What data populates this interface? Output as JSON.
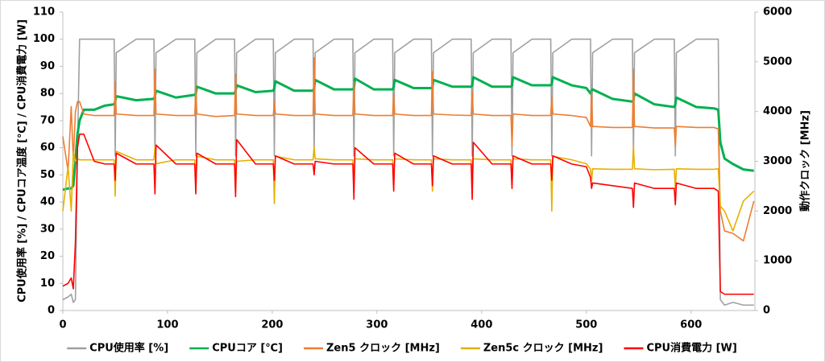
{
  "chart_data": {
    "type": "line",
    "y_label": "CPU使用率 [%] / CPUコア温度 [℃] / CPU消費電力 [W]",
    "y2_label": "動作クロック [MHz]",
    "x": [
      0,
      5,
      8,
      10,
      12,
      14,
      16,
      20,
      30,
      40,
      49,
      50,
      51,
      70,
      87,
      88,
      89,
      108,
      126,
      127,
      128,
      146,
      164,
      165,
      166,
      184,
      201,
      202,
      203,
      221,
      239,
      240,
      241,
      259,
      277,
      278,
      279,
      297,
      315,
      316,
      317,
      335,
      352,
      353,
      354,
      372,
      390,
      391,
      392,
      410,
      428,
      429,
      430,
      448,
      466,
      467,
      468,
      486,
      500,
      504,
      505,
      506,
      525,
      544,
      545,
      546,
      565,
      584,
      585,
      586,
      605,
      622,
      626,
      628,
      632,
      640,
      650,
      660
    ],
    "xlim": [
      0,
      661
    ],
    "xticks": [
      0,
      100,
      200,
      300,
      400,
      500,
      600
    ],
    "ylim": [
      0,
      110
    ],
    "yticks": [
      0,
      10,
      20,
      30,
      40,
      50,
      60,
      70,
      80,
      90,
      100,
      110
    ],
    "y2lim": [
      0,
      6000
    ],
    "y2ticks": [
      0,
      1000,
      2000,
      3000,
      4000,
      5000,
      6000
    ],
    "legend": "bottom",
    "series": [
      {
        "name": "CPU使用率 [%]",
        "color": "#a0a0a0",
        "values": [
          4,
          5,
          6,
          3,
          4,
          60,
          100,
          100,
          100,
          100,
          100,
          57,
          95,
          100,
          100,
          57,
          95,
          100,
          100,
          57,
          95,
          100,
          100,
          57,
          95,
          100,
          100,
          57,
          95,
          100,
          100,
          57,
          95,
          100,
          100,
          57,
          95,
          100,
          100,
          57,
          95,
          100,
          100,
          57,
          95,
          100,
          100,
          57,
          95,
          100,
          100,
          57,
          95,
          100,
          100,
          57,
          95,
          100,
          100,
          100,
          57,
          95,
          100,
          100,
          57,
          95,
          100,
          100,
          57,
          95,
          100,
          100,
          100,
          4,
          2,
          3,
          2,
          2
        ]
      },
      {
        "name": "CPUコア [℃]",
        "color": "#00b050",
        "values": [
          44.5,
          45,
          45,
          46,
          55,
          65,
          70,
          74,
          74,
          75.5,
          76,
          77,
          79,
          77.5,
          78,
          79,
          81,
          78.5,
          79.5,
          80,
          82.5,
          80,
          80,
          81,
          83,
          80.5,
          81,
          82,
          84.5,
          81,
          81,
          82,
          85,
          81.5,
          81.5,
          82,
          85.5,
          81.5,
          81.5,
          82.5,
          85,
          82,
          82,
          82.5,
          85,
          82.5,
          82.5,
          83,
          86,
          82.5,
          82.5,
          83,
          86,
          83,
          83,
          83.5,
          86,
          83,
          82,
          80,
          81,
          81.5,
          78,
          77,
          77.5,
          80,
          76,
          75,
          76,
          78.5,
          75,
          74.5,
          74,
          62,
          56,
          54,
          52,
          51.5
        ]
      },
      {
        "name": "Zen5 クロック [MHz]",
        "color": "#ed7d31",
        "axis": "y2",
        "values": [
          3500,
          2800,
          4100,
          3000,
          4000,
          4200,
          4200,
          3950,
          3920,
          3920,
          3920,
          4600,
          3950,
          3920,
          3920,
          4850,
          3950,
          3920,
          3920,
          4500,
          3950,
          3900,
          3920,
          4750,
          3950,
          3920,
          3920,
          4200,
          3950,
          3920,
          3920,
          5080,
          3950,
          3920,
          3920,
          4600,
          3950,
          3920,
          3920,
          4350,
          3950,
          3920,
          3920,
          4800,
          3950,
          3930,
          3920,
          4400,
          3950,
          3920,
          3920,
          3300,
          3950,
          3920,
          3920,
          4300,
          3950,
          3920,
          3880,
          3700,
          4400,
          3700,
          3680,
          3680,
          4850,
          3700,
          3670,
          3670,
          3300,
          3700,
          3680,
          3680,
          3650,
          2000,
          1600,
          1550,
          1400,
          2200
        ]
      },
      {
        "name": "Zen5c クロック [MHz]",
        "color": "#e6b000",
        "axis": "y2",
        "values": [
          2000,
          2900,
          2000,
          3200,
          3000,
          3050,
          3030,
          3030,
          3030,
          3030,
          3030,
          2300,
          3200,
          3030,
          3030,
          3300,
          2950,
          3030,
          3030,
          2450,
          3100,
          3030,
          3030,
          2400,
          3000,
          3030,
          3030,
          2150,
          3100,
          3030,
          3030,
          3300,
          3050,
          3030,
          3030,
          2550,
          3050,
          3030,
          3030,
          2750,
          3050,
          3030,
          3030,
          2400,
          3050,
          3030,
          3030,
          2500,
          3050,
          3030,
          3030,
          2600,
          3050,
          3030,
          3030,
          2000,
          3100,
          3030,
          2950,
          2840,
          2600,
          2850,
          2840,
          2840,
          3300,
          2850,
          2830,
          2840,
          2450,
          2850,
          2840,
          2840,
          2850,
          2100,
          2000,
          1600,
          2200,
          2400
        ]
      },
      {
        "name": "CPU消費電力 [W]",
        "color": "#ff0000",
        "values": [
          9,
          10,
          12,
          8,
          25,
          60,
          65,
          65,
          55,
          54,
          54,
          48,
          58,
          54,
          54,
          43,
          61,
          54,
          54,
          43,
          58,
          54,
          54,
          42,
          63,
          54,
          54,
          48,
          57,
          54,
          54,
          50,
          55,
          54,
          54,
          41,
          60,
          54,
          54,
          44,
          58,
          54,
          54,
          46,
          57,
          54,
          54,
          41,
          62,
          54,
          54,
          45,
          57,
          54,
          54,
          48,
          57,
          54,
          53,
          49,
          45,
          47,
          46,
          45,
          38,
          47,
          45,
          45,
          39,
          47,
          45,
          45,
          44,
          7,
          6,
          6,
          6,
          6
        ]
      }
    ]
  }
}
